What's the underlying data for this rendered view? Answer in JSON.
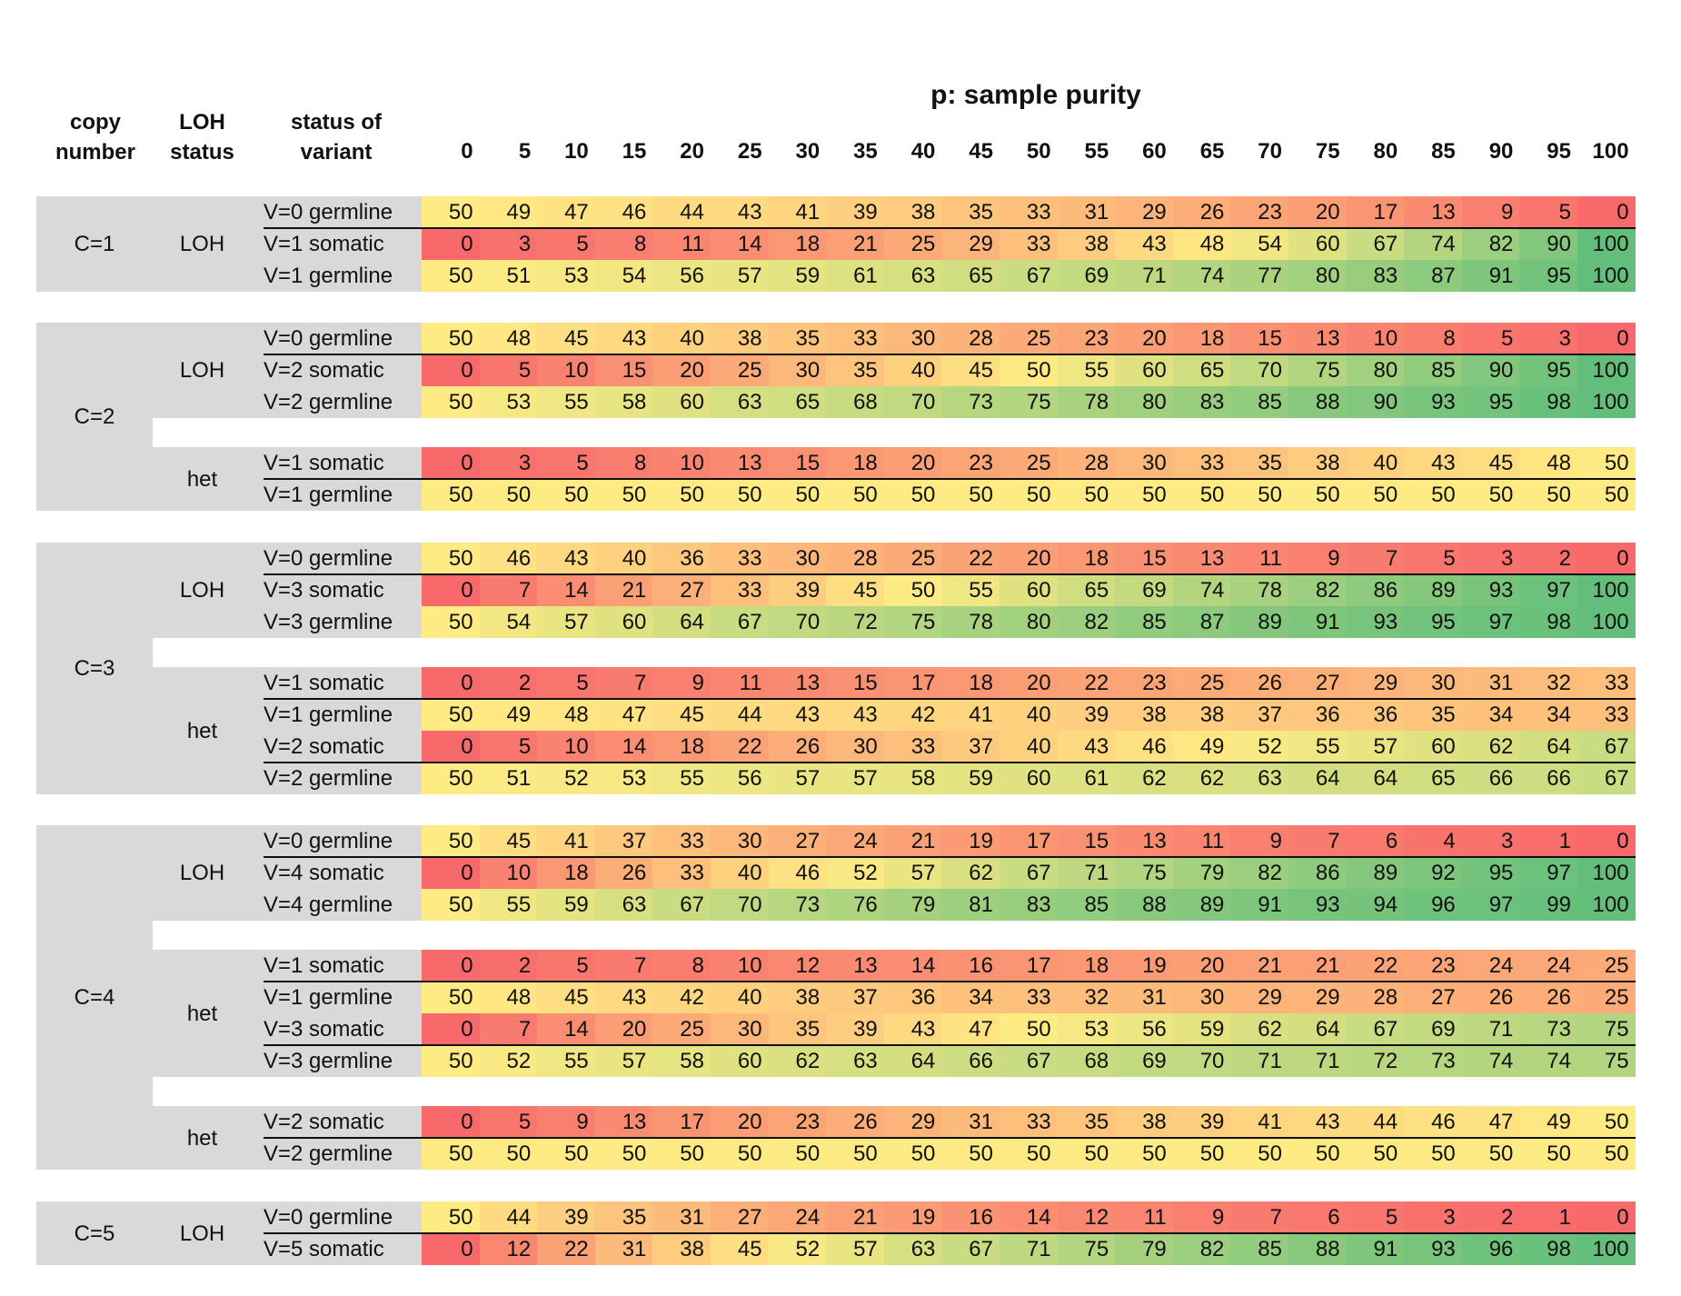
{
  "header": {
    "title": "p:  sample purity",
    "col_copy": [
      "copy",
      "number"
    ],
    "col_loh": [
      "LOH",
      "status"
    ],
    "col_status": [
      "status of",
      "variant"
    ],
    "purity": [
      "0",
      "5",
      "10",
      "15",
      "20",
      "25",
      "30",
      "35",
      "40",
      "45",
      "50",
      "55",
      "60",
      "65",
      "70",
      "75",
      "80",
      "85",
      "90",
      "95",
      "100"
    ]
  },
  "groups": [
    {
      "copy": "C=1",
      "subgroups": [
        {
          "loh": "LOH",
          "rows": [
            {
              "status": "V=0  germline",
              "values": [
                50,
                49,
                47,
                46,
                44,
                43,
                41,
                39,
                38,
                35,
                33,
                31,
                29,
                26,
                23,
                20,
                17,
                13,
                9,
                5,
                0
              ]
            },
            {
              "status": "V=1  somatic",
              "values": [
                0,
                3,
                5,
                8,
                11,
                14,
                18,
                21,
                25,
                29,
                33,
                38,
                43,
                48,
                54,
                60,
                67,
                74,
                82,
                90,
                100
              ]
            },
            {
              "status": "V=1  germline",
              "values": [
                50,
                51,
                53,
                54,
                56,
                57,
                59,
                61,
                63,
                65,
                67,
                69,
                71,
                74,
                77,
                80,
                83,
                87,
                91,
                95,
                100
              ]
            }
          ]
        }
      ]
    },
    {
      "copy": "C=2",
      "subgroups": [
        {
          "loh": "LOH",
          "rows": [
            {
              "status": "V=0  germline",
              "values": [
                50,
                48,
                45,
                43,
                40,
                38,
                35,
                33,
                30,
                28,
                25,
                23,
                20,
                18,
                15,
                13,
                10,
                8,
                5,
                3,
                0
              ]
            },
            {
              "status": "V=2  somatic",
              "values": [
                0,
                5,
                10,
                15,
                20,
                25,
                30,
                35,
                40,
                45,
                50,
                55,
                60,
                65,
                70,
                75,
                80,
                85,
                90,
                95,
                100
              ]
            },
            {
              "status": "V=2  germline",
              "values": [
                50,
                53,
                55,
                58,
                60,
                63,
                65,
                68,
                70,
                73,
                75,
                78,
                80,
                83,
                85,
                88,
                90,
                93,
                95,
                98,
                100
              ]
            }
          ]
        },
        {
          "loh": "het",
          "rows": [
            {
              "status": "V=1  somatic",
              "values": [
                0,
                3,
                5,
                8,
                10,
                13,
                15,
                18,
                20,
                23,
                25,
                28,
                30,
                33,
                35,
                38,
                40,
                43,
                45,
                48,
                50
              ]
            },
            {
              "status": "V=1  germline",
              "values": [
                50,
                50,
                50,
                50,
                50,
                50,
                50,
                50,
                50,
                50,
                50,
                50,
                50,
                50,
                50,
                50,
                50,
                50,
                50,
                50,
                50
              ]
            }
          ]
        }
      ]
    },
    {
      "copy": "C=3",
      "subgroups": [
        {
          "loh": "LOH",
          "rows": [
            {
              "status": "V=0  germline",
              "values": [
                50,
                46,
                43,
                40,
                36,
                33,
                30,
                28,
                25,
                22,
                20,
                18,
                15,
                13,
                11,
                9,
                7,
                5,
                3,
                2,
                0
              ]
            },
            {
              "status": "V=3  somatic",
              "values": [
                0,
                7,
                14,
                21,
                27,
                33,
                39,
                45,
                50,
                55,
                60,
                65,
                69,
                74,
                78,
                82,
                86,
                89,
                93,
                97,
                100
              ]
            },
            {
              "status": "V=3  germline",
              "values": [
                50,
                54,
                57,
                60,
                64,
                67,
                70,
                72,
                75,
                78,
                80,
                82,
                85,
                87,
                89,
                91,
                93,
                95,
                97,
                98,
                100
              ]
            }
          ]
        },
        {
          "loh": "het",
          "rows": [
            {
              "status": "V=1  somatic",
              "values": [
                0,
                2,
                5,
                7,
                9,
                11,
                13,
                15,
                17,
                18,
                20,
                22,
                23,
                25,
                26,
                27,
                29,
                30,
                31,
                32,
                33
              ]
            },
            {
              "status": "V=1  germline",
              "values": [
                50,
                49,
                48,
                47,
                45,
                44,
                43,
                43,
                42,
                41,
                40,
                39,
                38,
                38,
                37,
                36,
                36,
                35,
                34,
                34,
                33
              ]
            },
            {
              "status": "V=2  somatic",
              "values": [
                0,
                5,
                10,
                14,
                18,
                22,
                26,
                30,
                33,
                37,
                40,
                43,
                46,
                49,
                52,
                55,
                57,
                60,
                62,
                64,
                67
              ]
            },
            {
              "status": "V=2  germline",
              "values": [
                50,
                51,
                52,
                53,
                55,
                56,
                57,
                57,
                58,
                59,
                60,
                61,
                62,
                62,
                63,
                64,
                64,
                65,
                66,
                66,
                67
              ]
            }
          ]
        }
      ]
    },
    {
      "copy": "C=4",
      "subgroups": [
        {
          "loh": "LOH",
          "rows": [
            {
              "status": "V=0  germline",
              "values": [
                50,
                45,
                41,
                37,
                33,
                30,
                27,
                24,
                21,
                19,
                17,
                15,
                13,
                11,
                9,
                7,
                6,
                4,
                3,
                1,
                0
              ]
            },
            {
              "status": "V=4  somatic",
              "values": [
                0,
                10,
                18,
                26,
                33,
                40,
                46,
                52,
                57,
                62,
                67,
                71,
                75,
                79,
                82,
                86,
                89,
                92,
                95,
                97,
                100
              ]
            },
            {
              "status": "V=4  germline",
              "values": [
                50,
                55,
                59,
                63,
                67,
                70,
                73,
                76,
                79,
                81,
                83,
                85,
                88,
                89,
                91,
                93,
                94,
                96,
                97,
                99,
                100
              ]
            }
          ]
        },
        {
          "loh": "het",
          "rows": [
            {
              "status": "V=1  somatic",
              "values": [
                0,
                2,
                5,
                7,
                8,
                10,
                12,
                13,
                14,
                16,
                17,
                18,
                19,
                20,
                21,
                21,
                22,
                23,
                24,
                24,
                25
              ]
            },
            {
              "status": "V=1  germline",
              "values": [
                50,
                48,
                45,
                43,
                42,
                40,
                38,
                37,
                36,
                34,
                33,
                32,
                31,
                30,
                29,
                29,
                28,
                27,
                26,
                26,
                25
              ]
            },
            {
              "status": "V=3  somatic",
              "values": [
                0,
                7,
                14,
                20,
                25,
                30,
                35,
                39,
                43,
                47,
                50,
                53,
                56,
                59,
                62,
                64,
                67,
                69,
                71,
                73,
                75
              ]
            },
            {
              "status": "V=3  germline",
              "values": [
                50,
                52,
                55,
                57,
                58,
                60,
                62,
                63,
                64,
                66,
                67,
                68,
                69,
                70,
                71,
                71,
                72,
                73,
                74,
                74,
                75
              ]
            }
          ]
        },
        {
          "loh": "het",
          "rows": [
            {
              "status": "V=2  somatic",
              "values": [
                0,
                5,
                9,
                13,
                17,
                20,
                23,
                26,
                29,
                31,
                33,
                35,
                38,
                39,
                41,
                43,
                44,
                46,
                47,
                49,
                50
              ]
            },
            {
              "status": "V=2  germline",
              "values": [
                50,
                50,
                50,
                50,
                50,
                50,
                50,
                50,
                50,
                50,
                50,
                50,
                50,
                50,
                50,
                50,
                50,
                50,
                50,
                50,
                50
              ]
            }
          ]
        }
      ]
    },
    {
      "copy": "C=5",
      "subgroups": [
        {
          "loh": "LOH",
          "rows": [
            {
              "status": "V=0  germline",
              "values": [
                50,
                44,
                39,
                35,
                31,
                27,
                24,
                21,
                19,
                16,
                14,
                12,
                11,
                9,
                7,
                6,
                5,
                3,
                2,
                1,
                0
              ]
            },
            {
              "status": "V=5  somatic",
              "values": [
                0,
                12,
                22,
                31,
                38,
                45,
                52,
                57,
                63,
                67,
                71,
                75,
                79,
                82,
                85,
                88,
                91,
                93,
                96,
                98,
                100
              ]
            }
          ]
        }
      ]
    }
  ],
  "colors": {
    "low": "#f8696b",
    "mid": "#ffeb84",
    "high": "#63be7b",
    "panel": "#d9d9d9"
  }
}
